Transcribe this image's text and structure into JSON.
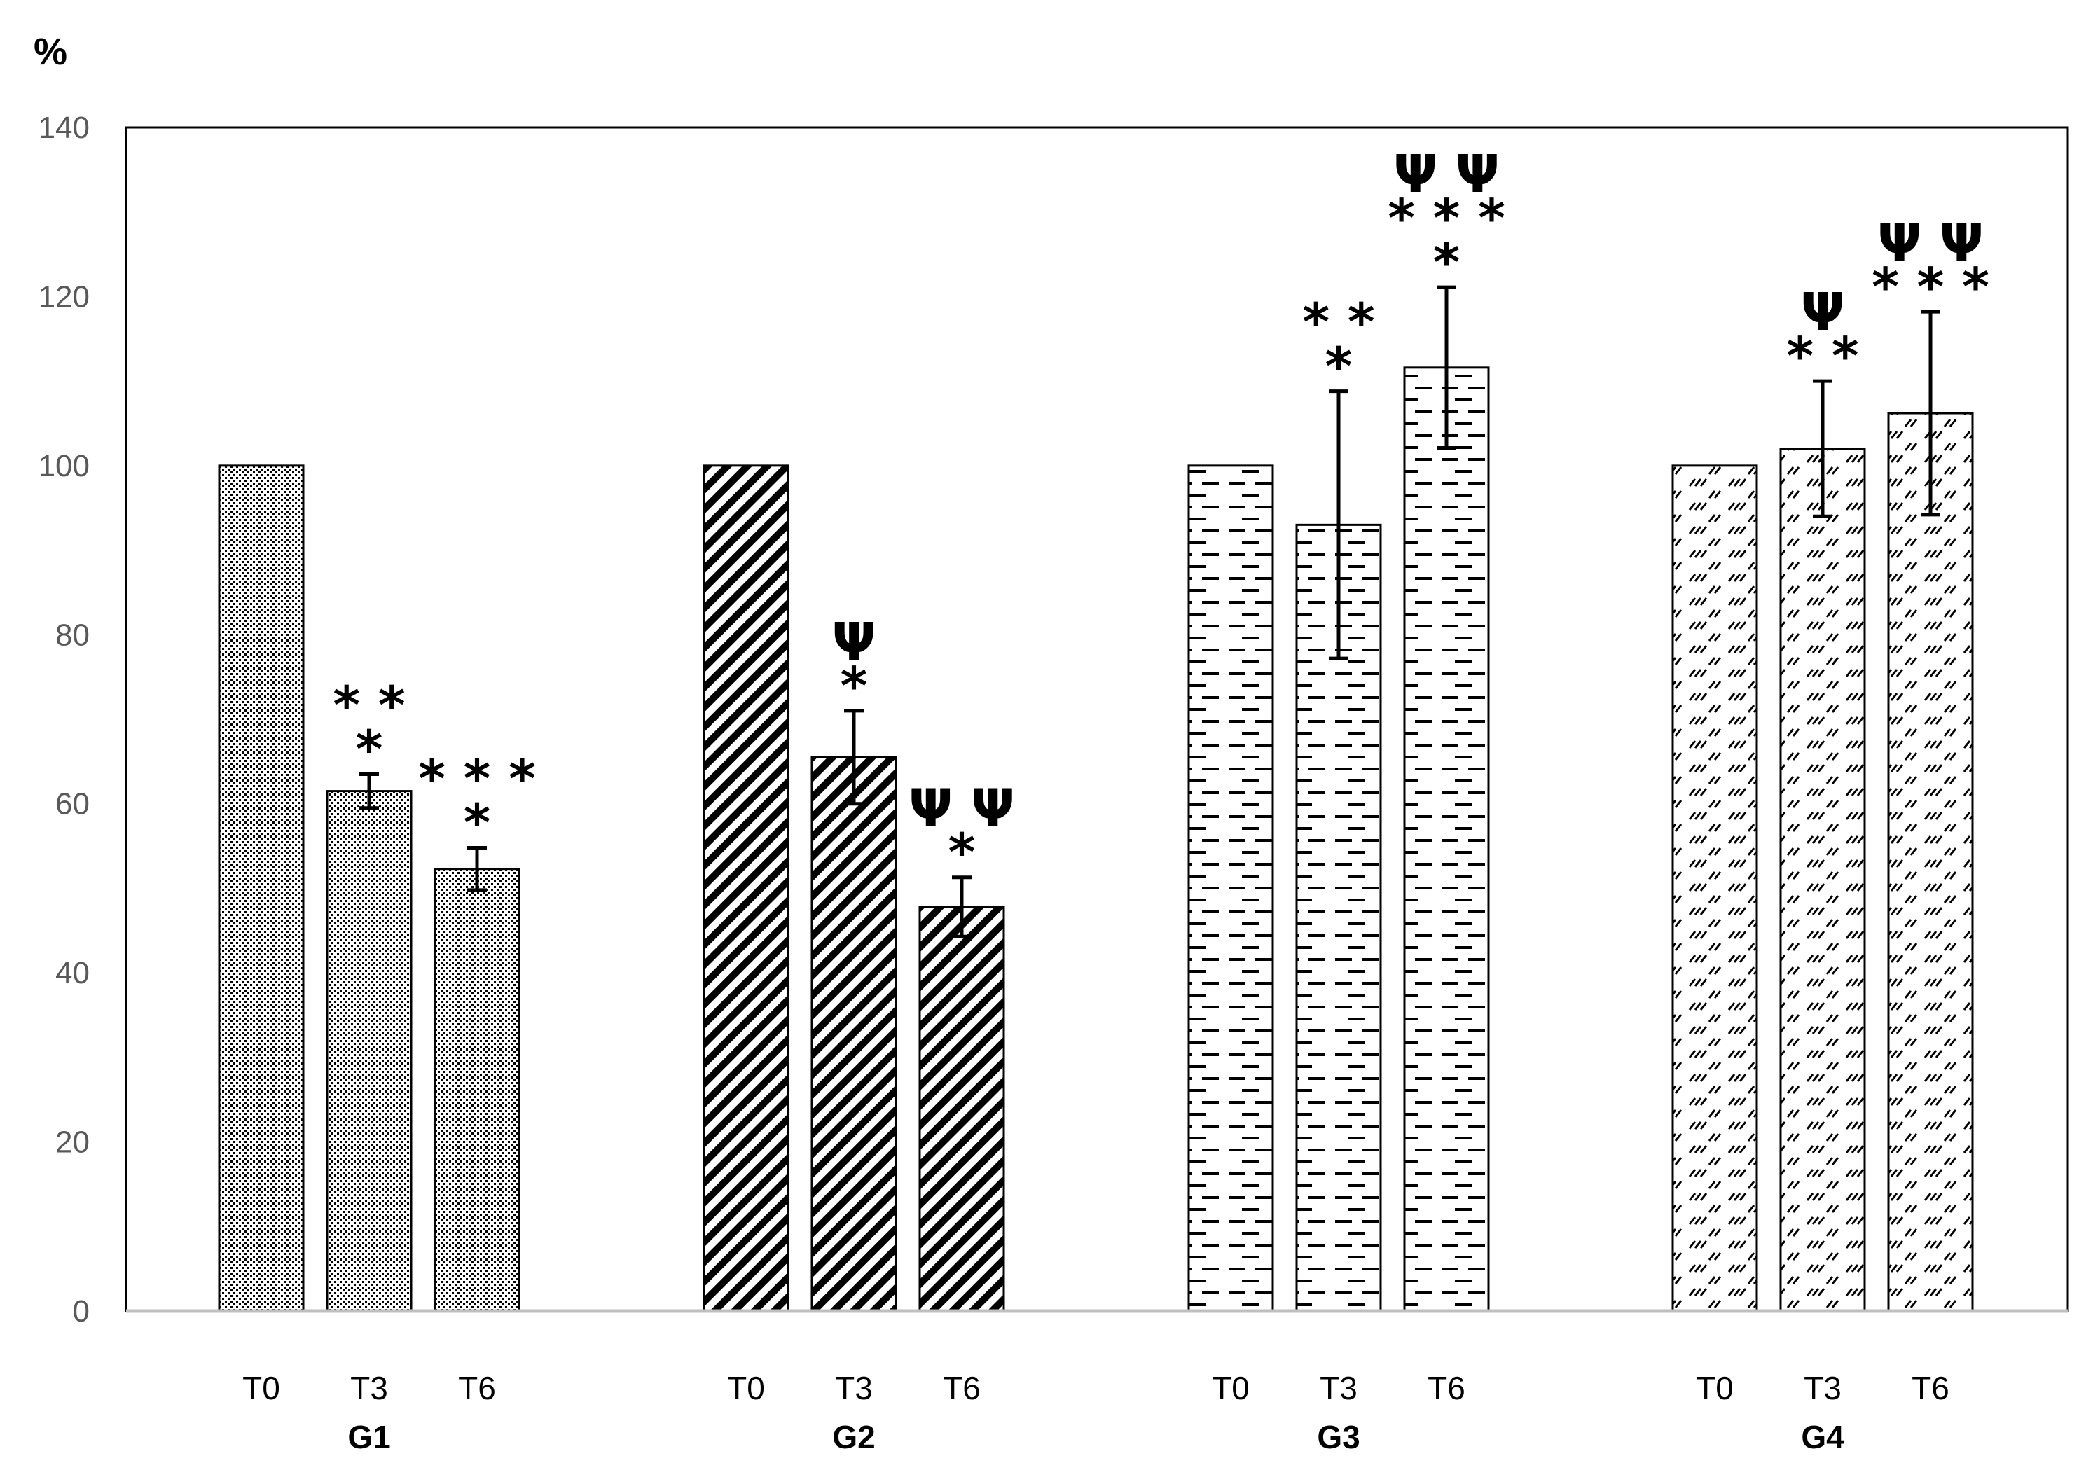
{
  "chart_data": {
    "type": "bar",
    "ylabel": "%",
    "ylim": [
      0,
      140
    ],
    "yticks": [
      "0",
      "20",
      "40",
      "60",
      "80",
      "100",
      "120",
      "140"
    ],
    "groups": [
      {
        "name": "G1",
        "pattern": "dots",
        "bars": [
          {
            "label": "T0",
            "value": 100,
            "err": 0,
            "sig": []
          },
          {
            "label": "T3",
            "value": 61.5,
            "err": 2,
            "sig": [
              "* *",
              "*"
            ]
          },
          {
            "label": "T6",
            "value": 52.3,
            "err": 2.5,
            "sig": [
              "* * *",
              "*"
            ]
          }
        ]
      },
      {
        "name": "G2",
        "pattern": "diagonal",
        "bars": [
          {
            "label": "T0",
            "value": 100,
            "err": 0,
            "sig": []
          },
          {
            "label": "T3",
            "value": 65.5,
            "err": 5.5,
            "sig": [
              "Ψ",
              "*"
            ]
          },
          {
            "label": "T6",
            "value": 47.8,
            "err": 3.5,
            "sig": [
              "Ψ Ψ",
              "*"
            ]
          }
        ]
      },
      {
        "name": "G3",
        "pattern": "dashes",
        "bars": [
          {
            "label": "T0",
            "value": 100,
            "err": 0,
            "sig": []
          },
          {
            "label": "T3",
            "value": 93,
            "err": 15.8,
            "sig": [
              "* *",
              "*"
            ]
          },
          {
            "label": "T6",
            "value": 111.6,
            "err": 9.5,
            "sig": [
              "Ψ Ψ",
              "* * *",
              "*"
            ]
          }
        ]
      },
      {
        "name": "G4",
        "pattern": "slashes",
        "bars": [
          {
            "label": "T0",
            "value": 100,
            "err": 0,
            "sig": []
          },
          {
            "label": "T3",
            "value": 102,
            "err": 8,
            "sig": [
              "Ψ",
              "* *"
            ]
          },
          {
            "label": "T6",
            "value": 106.2,
            "err": 12,
            "sig": [
              "Ψ Ψ",
              "* * *"
            ]
          }
        ]
      }
    ]
  }
}
